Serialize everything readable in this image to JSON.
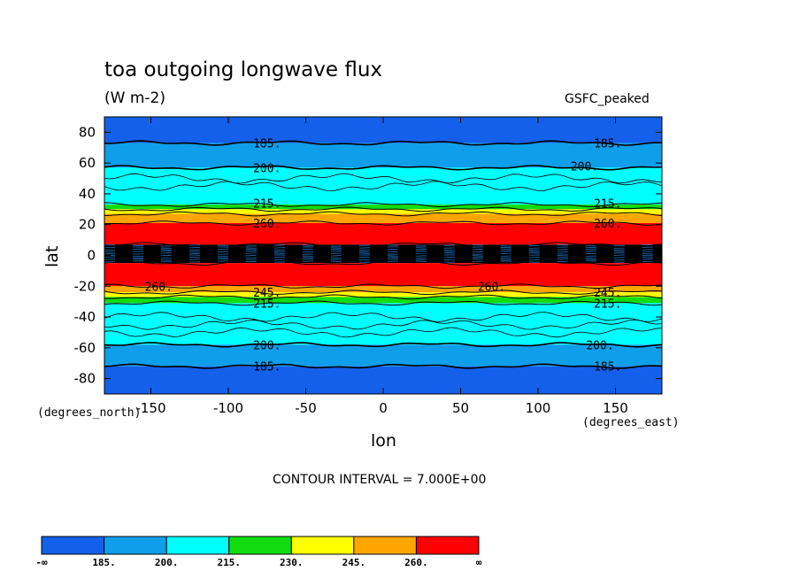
{
  "header": {
    "title": "toa outgoing longwave flux",
    "units": "(W m-2)",
    "model": "GSFC_peaked"
  },
  "axes": {
    "xlabel": "lon",
    "ylabel": "lat",
    "x_note": "(degrees_east)",
    "y_note": "(degrees_north)"
  },
  "footer": {
    "contour_interval": "CONTOUR INTERVAL = 7.000E+00"
  },
  "colors": {
    "band_lt185": "#1460ea",
    "band_185_200": "#0f9eea",
    "band_200_215": "#00ffff",
    "band_215_230": "#11dd11",
    "band_230_245": "#ffff00",
    "band_245_260": "#ffa500",
    "band_gt260": "#ff0000",
    "deep_convection": "#000000"
  },
  "chart_data": {
    "type": "heatmap",
    "title": "toa outgoing longwave flux",
    "subtitle": "(W m-2)",
    "xlabel": "lon",
    "ylabel": "lat",
    "xlim": [
      -180,
      180
    ],
    "ylim": [
      -90,
      90
    ],
    "xticks": [
      -150,
      -100,
      -50,
      0,
      50,
      100,
      150
    ],
    "yticks": [
      -80,
      -60,
      -40,
      -20,
      0,
      20,
      40,
      60,
      80
    ],
    "x_tick_labels": [
      "-150",
      "-100",
      "-50",
      "0",
      "50",
      "100",
      "150"
    ],
    "y_tick_labels": [
      "-80",
      "-60",
      "-40",
      "-20",
      "0",
      "20",
      "40",
      "60",
      "80"
    ],
    "contour_interval": 7.0,
    "colorbar": {
      "levels": [
        "-∞",
        "185.",
        "200.",
        "215.",
        "230.",
        "245.",
        "260.",
        "∞"
      ],
      "colors": [
        "#1460ea",
        "#0f9eea",
        "#00ffff",
        "#11dd11",
        "#ffff00",
        "#ffa500",
        "#ff0000"
      ]
    },
    "zonal_bands": [
      {
        "lat_from": 73,
        "lat_to": 90,
        "flux": "<185",
        "color": "#1460ea"
      },
      {
        "lat_from": 57,
        "lat_to": 73,
        "flux": "185-200",
        "color": "#0f9eea"
      },
      {
        "lat_from": 33,
        "lat_to": 57,
        "flux": "200-215",
        "color": "#00ffff"
      },
      {
        "lat_from": 30,
        "lat_to": 33,
        "flux": "215-230",
        "color": "#11dd11"
      },
      {
        "lat_from": 27,
        "lat_to": 30,
        "flux": "230-245",
        "color": "#ffff00"
      },
      {
        "lat_from": 21,
        "lat_to": 27,
        "flux": "245-260",
        "color": "#ffa500"
      },
      {
        "lat_from": 7,
        "lat_to": 21,
        "flux": ">260",
        "color": "#ff0000"
      },
      {
        "lat_from": -5,
        "lat_to": 7,
        "flux": "dense contours",
        "color": "#000000"
      },
      {
        "lat_from": -20,
        "lat_to": -5,
        "flux": ">260",
        "color": "#ff0000"
      },
      {
        "lat_from": -24,
        "lat_to": -20,
        "flux": "245-260",
        "color": "#ffa500"
      },
      {
        "lat_from": -27,
        "lat_to": -24,
        "flux": "230-245",
        "color": "#ffff00"
      },
      {
        "lat_from": -31,
        "lat_to": -27,
        "flux": "215-230",
        "color": "#11dd11"
      },
      {
        "lat_from": -58,
        "lat_to": -31,
        "flux": "200-215",
        "color": "#00ffff"
      },
      {
        "lat_from": -72,
        "lat_to": -58,
        "flux": "185-200",
        "color": "#0f9eea"
      },
      {
        "lat_from": -90,
        "lat_to": -72,
        "flux": "<185",
        "color": "#1460ea"
      }
    ],
    "contour_labels": [
      {
        "text": "185.",
        "lon": -75,
        "lat": 73
      },
      {
        "text": "185.",
        "lon": 145,
        "lat": 73
      },
      {
        "text": "200.",
        "lon": -75,
        "lat": 57
      },
      {
        "text": "200.",
        "lon": 130,
        "lat": 58
      },
      {
        "text": "215.",
        "lon": -75,
        "lat": 34
      },
      {
        "text": "215.",
        "lon": 145,
        "lat": 34
      },
      {
        "text": "260.",
        "lon": -75,
        "lat": 21
      },
      {
        "text": "260.",
        "lon": 145,
        "lat": 21
      },
      {
        "text": "260.",
        "lon": -145,
        "lat": -20
      },
      {
        "text": "260.",
        "lon": 70,
        "lat": -20
      },
      {
        "text": "245.",
        "lon": -75,
        "lat": -24
      },
      {
        "text": "245.",
        "lon": 145,
        "lat": -24
      },
      {
        "text": "215.",
        "lon": -75,
        "lat": -31
      },
      {
        "text": "215.",
        "lon": 145,
        "lat": -31
      },
      {
        "text": "200.",
        "lon": -75,
        "lat": -58
      },
      {
        "text": "200.",
        "lon": 140,
        "lat": -58
      },
      {
        "text": "185.",
        "lon": -75,
        "lat": -72
      },
      {
        "text": "185.",
        "lon": 145,
        "lat": -72
      }
    ]
  }
}
